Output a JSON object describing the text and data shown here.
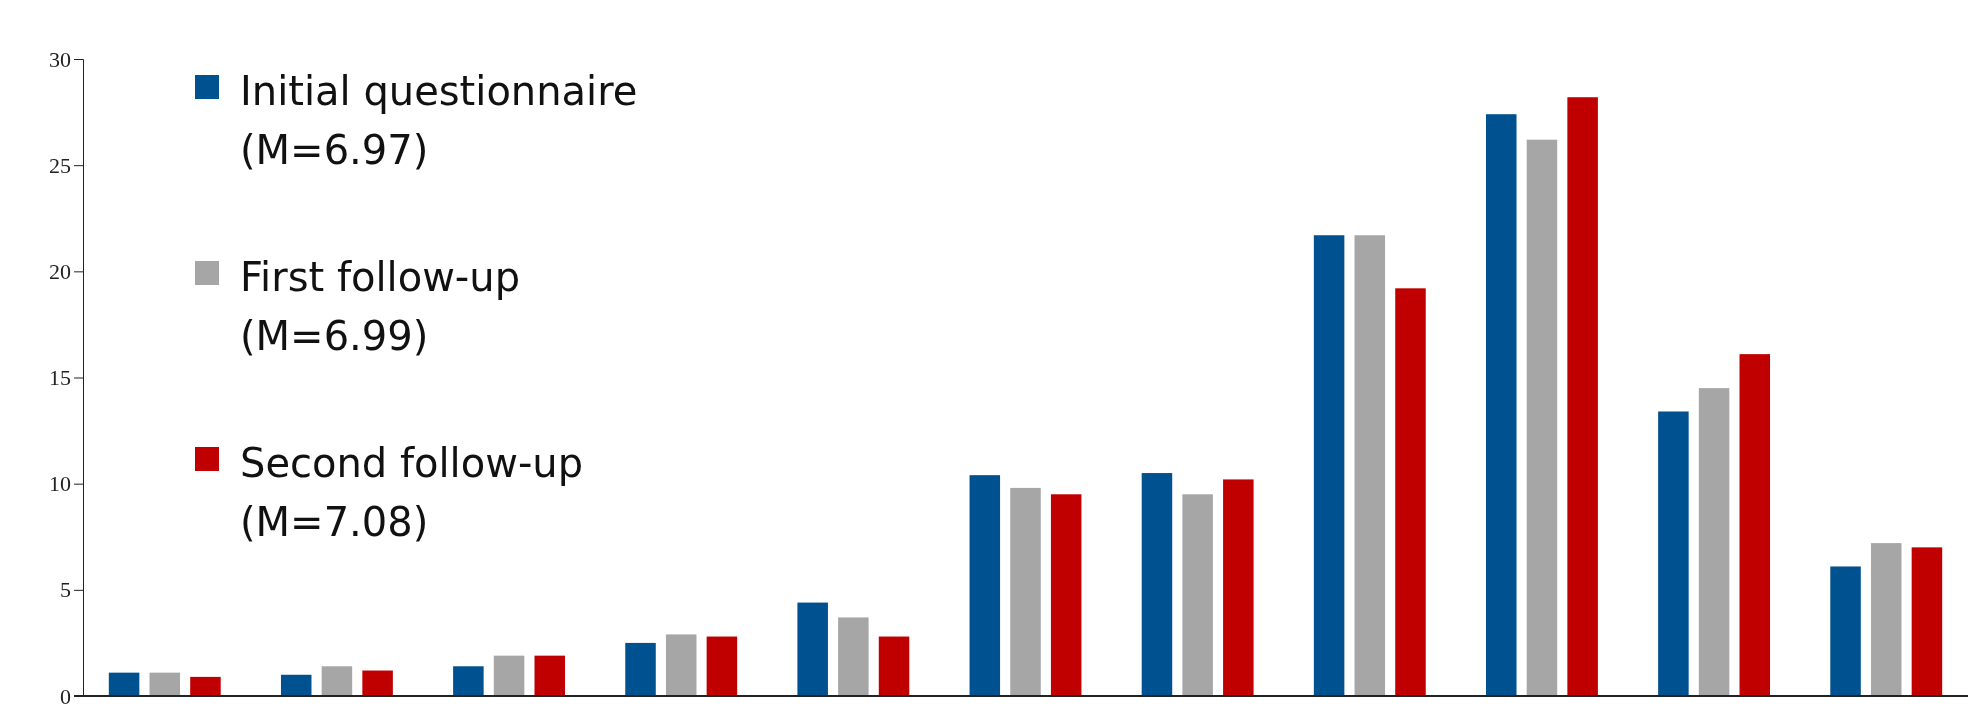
{
  "chart_data": {
    "type": "bar",
    "categories": [
      null,
      null,
      null,
      null,
      null,
      null,
      null,
      null,
      null,
      null,
      null
    ],
    "series": [
      {
        "name": "Initial questionnaire (M=6.97)",
        "color": "#00518f",
        "values": [
          1.1,
          1.0,
          1.4,
          2.5,
          4.4,
          10.4,
          10.5,
          21.7,
          27.4,
          13.4,
          6.1
        ]
      },
      {
        "name": "First follow-up (M=6.99)",
        "color": "#a6a6a6",
        "values": [
          1.1,
          1.4,
          1.9,
          2.9,
          3.7,
          9.8,
          9.5,
          21.7,
          26.2,
          14.5,
          7.2
        ]
      },
      {
        "name": "Second follow-up (M=7.08)",
        "color": "#c00000",
        "values": [
          0.9,
          1.2,
          1.9,
          2.8,
          2.8,
          9.5,
          10.2,
          19.2,
          28.2,
          16.1,
          7.0
        ]
      }
    ],
    "ylim": [
      0,
      30
    ],
    "yticks": [
      0,
      5,
      10,
      15,
      20,
      25,
      30
    ],
    "legend": "top left",
    "grid": false
  }
}
